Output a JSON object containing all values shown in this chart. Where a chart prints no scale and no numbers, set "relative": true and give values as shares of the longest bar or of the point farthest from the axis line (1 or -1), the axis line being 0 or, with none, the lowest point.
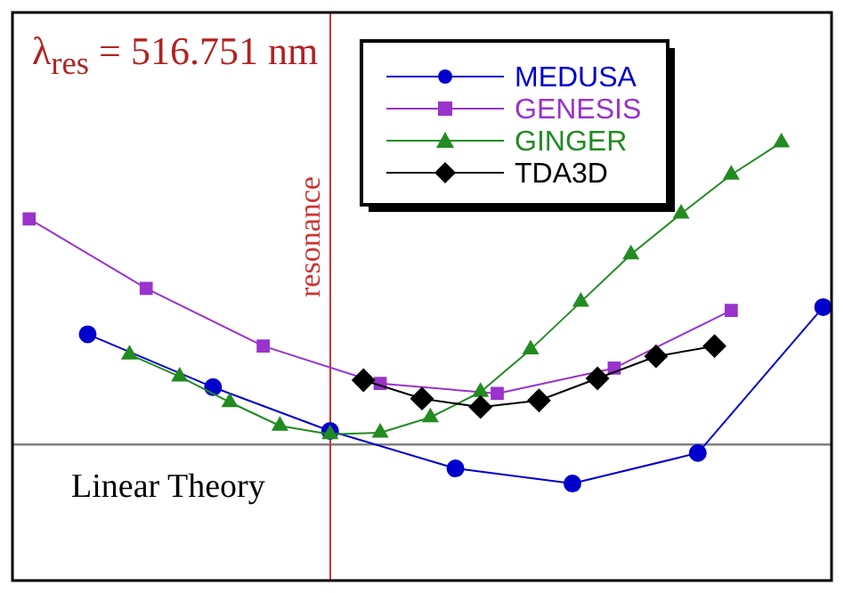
{
  "chart_data": {
    "type": "line",
    "relative": true,
    "categories": [
      null,
      null,
      null,
      null,
      null,
      null,
      null,
      null,
      null,
      null,
      null,
      null,
      null,
      null,
      null,
      null,
      null,
      null,
      null,
      null,
      null,
      null,
      null,
      null,
      null,
      null,
      null,
      null,
      null,
      null,
      null,
      null,
      null,
      null,
      null,
      null,
      null,
      null,
      null,
      null,
      null,
      null,
      null,
      null,
      null,
      null,
      null,
      null,
      null,
      null,
      null,
      null,
      null,
      null,
      null,
      null,
      null,
      null,
      null,
      null,
      null,
      null,
      null,
      null,
      null,
      null,
      null,
      null,
      null,
      null,
      null,
      null,
      null,
      null,
      null,
      null,
      null,
      null,
      null,
      null,
      null,
      null,
      null,
      null,
      null,
      null,
      null,
      null,
      null,
      null,
      null,
      null,
      null,
      null,
      null,
      null,
      null,
      null,
      null
    ],
    "grid": false,
    "legend": "top right",
    "series": [
      {
        "name": "MEDUSA",
        "color": "#0000cc",
        "marker": "circle",
        "values": [
          null,
          null,
          null,
          null,
          null,
          null,
          null,
          null,
          null,
          0.365,
          null,
          null,
          null,
          null,
          null,
          null,
          null,
          null,
          null,
          null,
          null,
          null,
          null,
          null,
          0.19,
          null,
          null,
          null,
          null,
          null,
          null,
          null,
          null,
          null,
          null,
          null,
          null,
          null,
          0.045,
          null,
          null,
          null,
          null,
          null,
          null,
          null,
          null,
          null,
          null,
          null,
          null,
          null,
          null,
          -0.079,
          null,
          null,
          null,
          null,
          null,
          null,
          null,
          null,
          null,
          null,
          null,
          null,
          null,
          -0.129,
          null,
          null,
          null,
          null,
          null,
          null,
          null,
          null,
          null,
          null,
          null,
          null,
          null,
          null,
          -0.028,
          null,
          null,
          null,
          null,
          null,
          null,
          null,
          null,
          null,
          null,
          null,
          null,
          null,
          null,
          0.455,
          null
        ]
      },
      {
        "name": "GENESIS",
        "color": "#9933cc",
        "marker": "square",
        "values": [
          null,
          null,
          0.747,
          null,
          null,
          null,
          null,
          null,
          null,
          null,
          null,
          null,
          null,
          null,
          null,
          null,
          0.517,
          null,
          null,
          null,
          null,
          null,
          null,
          null,
          null,
          null,
          null,
          null,
          null,
          null,
          0.326,
          null,
          null,
          null,
          null,
          null,
          null,
          null,
          null,
          null,
          null,
          null,
          null,
          null,
          0.202,
          null,
          null,
          null,
          null,
          null,
          null,
          null,
          null,
          null,
          null,
          null,
          null,
          null,
          0.169,
          null,
          null,
          null,
          null,
          null,
          null,
          null,
          null,
          null,
          null,
          null,
          null,
          null,
          0.253,
          null,
          null,
          null,
          null,
          null,
          null,
          null,
          null,
          null,
          null,
          null,
          null,
          null,
          0.444,
          null,
          null,
          null,
          null,
          null,
          null,
          null,
          null,
          null,
          null,
          null,
          null
        ]
      },
      {
        "name": "GINGER",
        "color": "#228b22",
        "marker": "triangle",
        "values": [
          null,
          null,
          null,
          null,
          null,
          null,
          null,
          null,
          null,
          null,
          null,
          null,
          null,
          null,
          0.298,
          null,
          null,
          null,
          null,
          null,
          0.225,
          null,
          null,
          null,
          null,
          null,
          0.14,
          null,
          null,
          null,
          null,
          null,
          0.062,
          null,
          null,
          null,
          null,
          null,
          0.034,
          null,
          null,
          null,
          null,
          null,
          0.039,
          null,
          null,
          null,
          null,
          null,
          0.09,
          null,
          null,
          null,
          null,
          null,
          0.174,
          null,
          null,
          null,
          null,
          null,
          0.315,
          null,
          null,
          null,
          null,
          null,
          0.472,
          null,
          null,
          null,
          null,
          null,
          0.629,
          null,
          null,
          null,
          null,
          null,
          0.764,
          null,
          null,
          null,
          null,
          null,
          0.893,
          null,
          null,
          null,
          null,
          null,
          1,
          null,
          null,
          null,
          null,
          null,
          null
        ]
      },
      {
        "name": "TDA3D",
        "color": "#000000",
        "marker": "diamond",
        "values": [
          null,
          null,
          null,
          null,
          null,
          null,
          null,
          null,
          null,
          null,
          null,
          null,
          null,
          null,
          null,
          null,
          null,
          null,
          null,
          null,
          null,
          null,
          null,
          null,
          null,
          null,
          null,
          null,
          null,
          null,
          null,
          null,
          null,
          null,
          null,
          null,
          null,
          null,
          null,
          null,
          null,
          null,
          0.213,
          null,
          null,
          null,
          null,
          null,
          null,
          0.152,
          null,
          null,
          null,
          null,
          null,
          null,
          0.124,
          null,
          null,
          null,
          null,
          null,
          null,
          0.146,
          null,
          null,
          null,
          null,
          null,
          null,
          0.219,
          null,
          null,
          null,
          null,
          null,
          null,
          0.292,
          null,
          null,
          null,
          null,
          null,
          null,
          0.326,
          null,
          null,
          null,
          null,
          null,
          null,
          null,
          null,
          null,
          null,
          null,
          null,
          null,
          null
        ]
      }
    ],
    "annotations": [
      "λ$_{res}$ = 516.751 nm",
      "Linear Theory",
      "resonance"
    ]
  }
}
